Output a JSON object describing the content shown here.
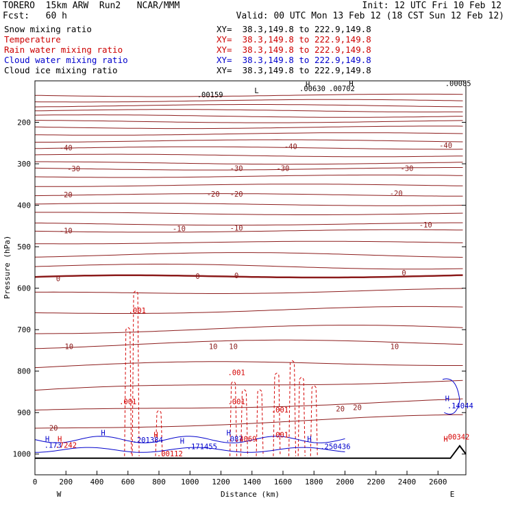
{
  "header": {
    "model": "TORERO",
    "resolution": "15km ARW",
    "run": "Run2",
    "institution": "NCAR/MMM",
    "init": "Init: 12 UTC Fri 10 Feb 12",
    "fcst_label": "Fcst:",
    "fcst_hours": "60 h",
    "valid": "Valid: 00 UTC Mon 13 Feb 12 (18 CST Sun 12 Feb 12)"
  },
  "legend": [
    {
      "label": "Snow mixing ratio",
      "color": "#000000",
      "xy": "XY=  38.3,149.8 to 222.9,149.8",
      "xy_color": "#000000"
    },
    {
      "label": "Temperature",
      "color": "#cc0000",
      "xy": "XY=  38.3,149.8 to 222.9,149.8",
      "xy_color": "#cc0000"
    },
    {
      "label": "Rain water mixing ratio",
      "color": "#cc0000",
      "xy": "XY=  38.3,149.8 to 222.9,149.8",
      "xy_color": "#cc0000"
    },
    {
      "label": "Cloud water mixing ratio",
      "color": "#0000cc",
      "xy": "XY=  38.3,149.8 to 222.9,149.8",
      "xy_color": "#0000cc"
    },
    {
      "label": "Cloud ice mixing ratio",
      "color": "#000000",
      "xy": "XY=  38.3,149.8 to 222.9,149.8",
      "xy_color": "#000000"
    }
  ],
  "chart_data": {
    "type": "cross-section contour",
    "xlabel": "Distance (km)",
    "ylabel": "Pressure (hPa)",
    "xlim": [
      0,
      2780
    ],
    "ylim": [
      1050,
      100
    ],
    "x_ticks": [
      0,
      200,
      400,
      600,
      800,
      1000,
      1200,
      1400,
      1600,
      1800,
      2000,
      2200,
      2400,
      2600
    ],
    "y_ticks": [
      200,
      300,
      400,
      500,
      600,
      700,
      800,
      900,
      1000
    ],
    "x_endpoints": {
      "left": "W",
      "right": "E"
    },
    "temperature_contours": [
      {
        "level": -40,
        "pressure_west": 262,
        "pressure_east": 255,
        "labels_km": [
          200,
          1650,
          2650
        ]
      },
      {
        "level": -30,
        "pressure_west": 312,
        "pressure_east": 310,
        "labels_km": [
          250,
          1300,
          1600,
          2400
        ]
      },
      {
        "level": -20,
        "pressure_west": 375,
        "pressure_east": 370,
        "labels_km": [
          200,
          1150,
          1300,
          2330
        ]
      },
      {
        "level": -10,
        "pressure_west": 462,
        "pressure_east": 445,
        "labels_km": [
          200,
          930,
          1300,
          2520
        ]
      },
      {
        "level": 0,
        "pressure_west": 578,
        "pressure_east": 560,
        "labels_km": [
          150,
          1050,
          1300,
          2380
        ]
      },
      {
        "level": 10,
        "pressure_west": 740,
        "pressure_east": 740,
        "labels_km": [
          220,
          1150,
          1280,
          2320
        ]
      },
      {
        "level": 20,
        "pressure_west": 940,
        "pressure_east": 870,
        "labels_km": [
          120,
          1970,
          2080
        ]
      }
    ],
    "labels": {
      "snow_values": [
        ".00159",
        ".00630",
        ".00702",
        ".00085"
      ],
      "rain_values": [
        ".001",
        ".001",
        ".001",
        ".001",
        ".001",
        ".001",
        ".00112",
        ".00342"
      ],
      "cloud_water_values": [
        ".173",
        ".201384",
        ".171455",
        ".087",
        ".250436",
        ".14044"
      ],
      "rain_max_values": [
        ".7242",
        ".4069"
      ],
      "highs": [
        "H",
        "H",
        "H",
        "H",
        "H",
        "H",
        "H",
        "H",
        "H",
        "H",
        "H"
      ],
      "lows": [
        "L"
      ]
    },
    "terrain": {
      "surface_hpa": 1010,
      "peak_km": 2740,
      "peak_hpa": 980
    }
  }
}
